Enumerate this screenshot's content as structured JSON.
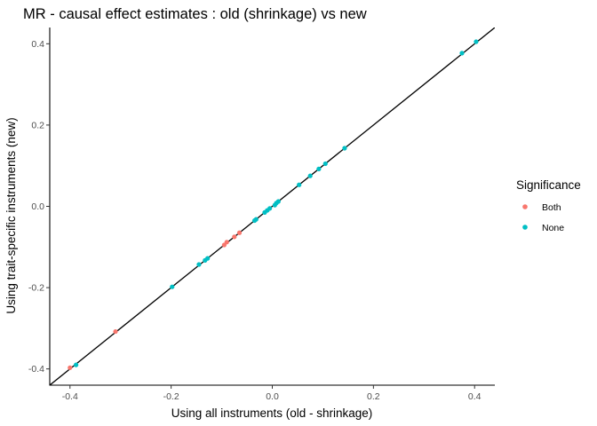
{
  "chart_data": {
    "type": "scatter",
    "title": "MR - causal effect estimates : old (shrinkage) vs new",
    "xlabel": "Using all instruments (old - shrinkage)",
    "ylabel": "Using trait-specific instruments (new)",
    "xlim": [
      -0.44,
      0.44
    ],
    "ylim": [
      -0.44,
      0.44
    ],
    "xticks": [
      -0.4,
      -0.2,
      0.0,
      0.2,
      0.4
    ],
    "yticks": [
      -0.4,
      -0.2,
      0.0,
      0.2,
      0.4
    ],
    "xtick_labels": [
      "-0.4",
      "-0.2",
      "0.0",
      "0.2",
      "0.4"
    ],
    "ytick_labels": [
      "-0.4",
      "-0.2",
      "0.0",
      "0.2",
      "0.4"
    ],
    "grid": false,
    "reference_line": "y = x",
    "legend": {
      "title": "Significance",
      "position": "right",
      "entries": [
        {
          "label": "Both",
          "color": "#F8766D"
        },
        {
          "label": "None",
          "color": "#00BFC4"
        }
      ]
    },
    "series": [
      {
        "name": "Both",
        "color": "#F8766D",
        "points": [
          [
            -0.4,
            -0.397
          ],
          [
            -0.31,
            -0.308
          ],
          [
            -0.095,
            -0.095
          ],
          [
            -0.09,
            -0.088
          ],
          [
            -0.075,
            -0.075
          ],
          [
            -0.065,
            -0.065
          ]
        ]
      },
      {
        "name": "None",
        "color": "#00BFC4",
        "points": [
          [
            -0.388,
            -0.39
          ],
          [
            -0.198,
            -0.198
          ],
          [
            -0.145,
            -0.143
          ],
          [
            -0.133,
            -0.133
          ],
          [
            -0.128,
            -0.128
          ],
          [
            -0.035,
            -0.035
          ],
          [
            -0.032,
            -0.032
          ],
          [
            -0.015,
            -0.015
          ],
          [
            -0.01,
            -0.01
          ],
          [
            -0.005,
            -0.005
          ],
          [
            0.005,
            0.003
          ],
          [
            0.008,
            0.008
          ],
          [
            0.012,
            0.012
          ],
          [
            0.053,
            0.053
          ],
          [
            0.075,
            0.075
          ],
          [
            0.092,
            0.092
          ],
          [
            0.105,
            0.105
          ],
          [
            0.143,
            0.143
          ],
          [
            0.375,
            0.377
          ],
          [
            0.403,
            0.405
          ]
        ]
      }
    ]
  }
}
